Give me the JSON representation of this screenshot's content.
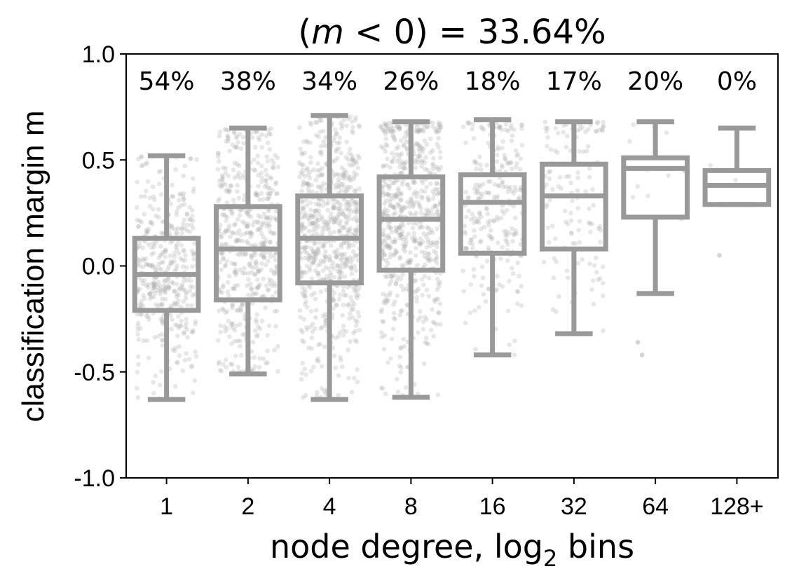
{
  "chart_data": {
    "type": "box",
    "title_prefix": "(",
    "title_var": "m",
    "title_suffix": " < 0) = 33.64%",
    "xlabel_main": "node degree, log",
    "xlabel_sub": "2",
    "xlabel_end": " bins",
    "ylabel": "classification margin m",
    "ylim": [
      -1.0,
      1.0
    ],
    "yticks": [
      -1.0,
      -0.5,
      0.0,
      0.5,
      1.0
    ],
    "ytick_labels": [
      "-1.0",
      "-0.5",
      "0.0",
      "0.5",
      "1.0"
    ],
    "categories": [
      "1",
      "2",
      "4",
      "8",
      "16",
      "32",
      "64",
      "128+"
    ],
    "percent_labels": [
      "54%",
      "38%",
      "34%",
      "26%",
      "18%",
      "17%",
      "20%",
      "0%"
    ],
    "boxes": [
      {
        "whisker_low": -0.63,
        "q1": -0.21,
        "median": -0.04,
        "q3": 0.13,
        "whisker_high": 0.52,
        "n_points": 420
      },
      {
        "whisker_low": -0.51,
        "q1": -0.16,
        "median": 0.08,
        "q3": 0.28,
        "whisker_high": 0.65,
        "n_points": 520
      },
      {
        "whisker_low": -0.63,
        "q1": -0.08,
        "median": 0.13,
        "q3": 0.33,
        "whisker_high": 0.71,
        "n_points": 700
      },
      {
        "whisker_low": -0.62,
        "q1": -0.02,
        "median": 0.22,
        "q3": 0.42,
        "whisker_high": 0.68,
        "n_points": 650
      },
      {
        "whisker_low": -0.42,
        "q1": 0.06,
        "median": 0.3,
        "q3": 0.43,
        "whisker_high": 0.69,
        "n_points": 260
      },
      {
        "whisker_low": -0.32,
        "q1": 0.08,
        "median": 0.33,
        "q3": 0.48,
        "whisker_high": 0.68,
        "n_points": 130
      },
      {
        "whisker_low": -0.13,
        "q1": 0.23,
        "median": 0.46,
        "q3": 0.51,
        "whisker_high": 0.68,
        "n_points": 12
      },
      {
        "whisker_low": 0.29,
        "q1": 0.29,
        "median": 0.38,
        "q3": 0.45,
        "whisker_high": 0.65,
        "n_points": 2
      }
    ],
    "outliers": [
      {
        "category_index": 6,
        "values": [
          -0.36,
          -0.42
        ]
      },
      {
        "category_index": 7,
        "values": [
          0.05
        ]
      }
    ],
    "box_color": "#999999",
    "point_color": "#aaaaaa"
  }
}
